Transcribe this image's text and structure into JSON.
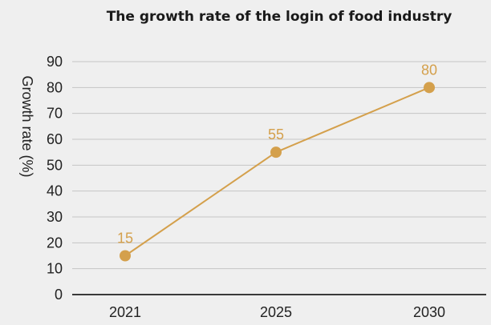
{
  "chart_data": {
    "type": "line",
    "title": "The growth rate of the login of food industry",
    "xlabel": "",
    "ylabel": "Growth rate (%)",
    "categories": [
      "2021",
      "2025",
      "2030"
    ],
    "values": [
      15,
      55,
      80
    ],
    "data_labels": [
      "15",
      "55",
      "80"
    ],
    "yticks": [
      "0",
      "10",
      "20",
      "30",
      "40",
      "50",
      "60",
      "70",
      "80",
      "90"
    ],
    "ylim": [
      0,
      90
    ],
    "grid": true,
    "legend": "none",
    "colors": {
      "series": "#d4a04c",
      "label": "#d4a04c",
      "grid": "#c4c4c4",
      "axis": "#3a3a3a",
      "background": "#efefef"
    }
  }
}
